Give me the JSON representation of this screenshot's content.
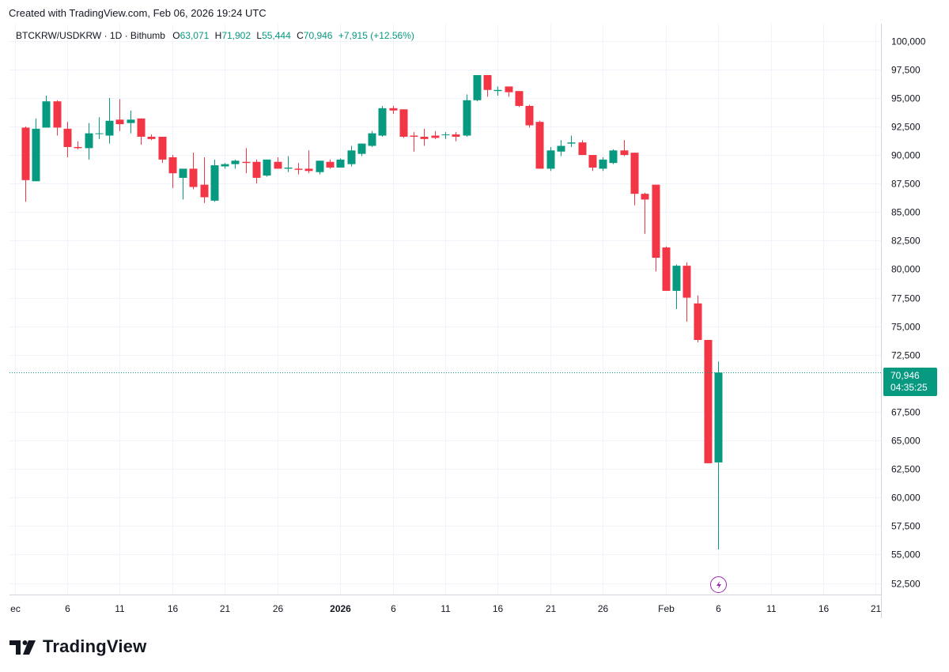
{
  "header": {
    "created_text": "Created with TradingView.com, Feb 06, 2026 19:24 UTC"
  },
  "legend": {
    "symbol": "BTCKRW/USDKRW · 1D · Bithumb",
    "o_label": "O",
    "o_value": "63,071",
    "h_label": "H",
    "h_value": "71,902",
    "l_label": "L",
    "l_value": "55,444",
    "c_label": "C",
    "c_value": "70,946",
    "change": "+7,915 (+12.56%)"
  },
  "price_tag": {
    "price": "70,946",
    "countdown": "04:35:25"
  },
  "brand": {
    "name": "TradingView"
  },
  "icons": {
    "event_marker": "lightning-bolt-icon",
    "logo": "tradingview-logo-icon"
  },
  "colors": {
    "up": "#089981",
    "down": "#F23645",
    "event": "#9C27B0",
    "grid": "#F0F3FA"
  },
  "chart_data": {
    "type": "candlestick",
    "title": "BTCKRW/USDKRW · 1D · Bithumb",
    "xlabel": "",
    "ylabel": "",
    "ylim": [
      51500,
      101500
    ],
    "y_ticks": [
      "100,000",
      "97,500",
      "95,000",
      "92,500",
      "90,000",
      "87,500",
      "85,000",
      "82,500",
      "80,000",
      "77,500",
      "75,000",
      "72,500",
      "67,500",
      "65,000",
      "62,500",
      "60,000",
      "57,500",
      "55,000",
      "52,500"
    ],
    "x_tick_labels": [
      "ec",
      "6",
      "11",
      "16",
      "21",
      "26",
      "2026",
      "6",
      "11",
      "16",
      "21",
      "26",
      "Feb",
      "6",
      "11",
      "16",
      "21"
    ],
    "x_tick_days": [
      0,
      5,
      10,
      15,
      20,
      25,
      31,
      36,
      41,
      46,
      51,
      56,
      62,
      67,
      72,
      77,
      82
    ],
    "x_range_days": [
      -0.5,
      82.5
    ],
    "last_price": 70946,
    "grid": true,
    "candles": [
      {
        "d": 1,
        "o": 92400,
        "h": 92500,
        "l": 85900,
        "c": 87800
      },
      {
        "d": 2,
        "o": 87700,
        "h": 93200,
        "l": 87700,
        "c": 92300
      },
      {
        "d": 3,
        "o": 92400,
        "h": 95200,
        "l": 92400,
        "c": 94700
      },
      {
        "d": 4,
        "o": 94700,
        "h": 94800,
        "l": 91700,
        "c": 92400
      },
      {
        "d": 5,
        "o": 92300,
        "h": 92900,
        "l": 89800,
        "c": 90700
      },
      {
        "d": 6,
        "o": 90700,
        "h": 91200,
        "l": 90500,
        "c": 90600
      },
      {
        "d": 7,
        "o": 90600,
        "h": 92800,
        "l": 89600,
        "c": 91900
      },
      {
        "d": 8,
        "o": 91900,
        "h": 93300,
        "l": 91400,
        "c": 91900
      },
      {
        "d": 9,
        "o": 91700,
        "h": 95000,
        "l": 91000,
        "c": 93000
      },
      {
        "d": 10,
        "o": 93100,
        "h": 94900,
        "l": 92100,
        "c": 92700
      },
      {
        "d": 11,
        "o": 92800,
        "h": 93900,
        "l": 91900,
        "c": 93100
      },
      {
        "d": 12,
        "o": 93200,
        "h": 93200,
        "l": 90900,
        "c": 91600
      },
      {
        "d": 13,
        "o": 91600,
        "h": 91800,
        "l": 91300,
        "c": 91400
      },
      {
        "d": 14,
        "o": 91600,
        "h": 91600,
        "l": 89300,
        "c": 89600
      },
      {
        "d": 15,
        "o": 89800,
        "h": 90000,
        "l": 87100,
        "c": 88400
      },
      {
        "d": 16,
        "o": 88000,
        "h": 88700,
        "l": 86100,
        "c": 88800
      },
      {
        "d": 17,
        "o": 88800,
        "h": 90200,
        "l": 87000,
        "c": 87200
      },
      {
        "d": 18,
        "o": 87400,
        "h": 89800,
        "l": 85800,
        "c": 86300
      },
      {
        "d": 19,
        "o": 86000,
        "h": 89600,
        "l": 85900,
        "c": 89100
      },
      {
        "d": 20,
        "o": 89000,
        "h": 89300,
        "l": 88800,
        "c": 89200
      },
      {
        "d": 21,
        "o": 89200,
        "h": 89600,
        "l": 88800,
        "c": 89500
      },
      {
        "d": 22,
        "o": 89400,
        "h": 90600,
        "l": 88400,
        "c": 89300
      },
      {
        "d": 23,
        "o": 89400,
        "h": 89600,
        "l": 87500,
        "c": 88000
      },
      {
        "d": 24,
        "o": 88200,
        "h": 89600,
        "l": 88100,
        "c": 89600
      },
      {
        "d": 25,
        "o": 89400,
        "h": 89800,
        "l": 88800,
        "c": 88800
      },
      {
        "d": 26,
        "o": 88800,
        "h": 89900,
        "l": 88500,
        "c": 88900
      },
      {
        "d": 27,
        "o": 88800,
        "h": 89300,
        "l": 88300,
        "c": 88700
      },
      {
        "d": 28,
        "o": 88800,
        "h": 90400,
        "l": 88400,
        "c": 88600
      },
      {
        "d": 29,
        "o": 88500,
        "h": 89500,
        "l": 88300,
        "c": 89500
      },
      {
        "d": 30,
        "o": 89400,
        "h": 89600,
        "l": 88800,
        "c": 88900
      },
      {
        "d": 31,
        "o": 88900,
        "h": 89700,
        "l": 88900,
        "c": 89600
      },
      {
        "d": 32,
        "o": 89200,
        "h": 90800,
        "l": 89000,
        "c": 90400
      },
      {
        "d": 33,
        "o": 90100,
        "h": 91000,
        "l": 89900,
        "c": 91000
      },
      {
        "d": 34,
        "o": 90800,
        "h": 92100,
        "l": 90700,
        "c": 91900
      },
      {
        "d": 35,
        "o": 91700,
        "h": 94300,
        "l": 91600,
        "c": 94100
      },
      {
        "d": 36,
        "o": 94100,
        "h": 94300,
        "l": 93600,
        "c": 93900
      },
      {
        "d": 37,
        "o": 94000,
        "h": 94000,
        "l": 91500,
        "c": 91600
      },
      {
        "d": 38,
        "o": 91700,
        "h": 92000,
        "l": 90300,
        "c": 91600
      },
      {
        "d": 39,
        "o": 91600,
        "h": 92300,
        "l": 90800,
        "c": 91400
      },
      {
        "d": 40,
        "o": 91700,
        "h": 92100,
        "l": 91400,
        "c": 91500
      },
      {
        "d": 41,
        "o": 91800,
        "h": 92000,
        "l": 91400,
        "c": 91800
      },
      {
        "d": 42,
        "o": 91800,
        "h": 92000,
        "l": 91200,
        "c": 91600
      },
      {
        "d": 43,
        "o": 91700,
        "h": 95300,
        "l": 91600,
        "c": 94800
      },
      {
        "d": 44,
        "o": 94800,
        "h": 97000,
        "l": 94700,
        "c": 97000
      },
      {
        "d": 45,
        "o": 97000,
        "h": 97000,
        "l": 95100,
        "c": 95700
      },
      {
        "d": 46,
        "o": 95600,
        "h": 96000,
        "l": 95200,
        "c": 95700
      },
      {
        "d": 47,
        "o": 96000,
        "h": 96000,
        "l": 95100,
        "c": 95500
      },
      {
        "d": 48,
        "o": 95600,
        "h": 95600,
        "l": 94200,
        "c": 94300
      },
      {
        "d": 49,
        "o": 94300,
        "h": 94400,
        "l": 92400,
        "c": 92600
      },
      {
        "d": 50,
        "o": 92900,
        "h": 93000,
        "l": 88800,
        "c": 88800
      },
      {
        "d": 51,
        "o": 88800,
        "h": 90700,
        "l": 88600,
        "c": 90400
      },
      {
        "d": 52,
        "o": 90300,
        "h": 91300,
        "l": 89900,
        "c": 90800
      },
      {
        "d": 53,
        "o": 91000,
        "h": 91700,
        "l": 90700,
        "c": 91100
      },
      {
        "d": 54,
        "o": 91100,
        "h": 91300,
        "l": 90000,
        "c": 90000
      },
      {
        "d": 55,
        "o": 90000,
        "h": 90000,
        "l": 88600,
        "c": 88900
      },
      {
        "d": 56,
        "o": 88800,
        "h": 89800,
        "l": 88600,
        "c": 89600
      },
      {
        "d": 57,
        "o": 89300,
        "h": 90500,
        "l": 89200,
        "c": 90400
      },
      {
        "d": 58,
        "o": 90400,
        "h": 91300,
        "l": 89900,
        "c": 90000
      },
      {
        "d": 59,
        "o": 90200,
        "h": 90200,
        "l": 85600,
        "c": 86600
      },
      {
        "d": 60,
        "o": 86600,
        "h": 86700,
        "l": 83100,
        "c": 86100
      },
      {
        "d": 61,
        "o": 87400,
        "h": 87400,
        "l": 79800,
        "c": 81000
      },
      {
        "d": 62,
        "o": 81900,
        "h": 82000,
        "l": 78100,
        "c": 78100
      },
      {
        "d": 63,
        "o": 78100,
        "h": 80400,
        "l": 76500,
        "c": 80300
      },
      {
        "d": 64,
        "o": 80300,
        "h": 80600,
        "l": 75400,
        "c": 77500
      },
      {
        "d": 65,
        "o": 77000,
        "h": 77700,
        "l": 73600,
        "c": 73800
      },
      {
        "d": 66,
        "o": 73800,
        "h": 73800,
        "l": 63000,
        "c": 63000
      },
      {
        "d": 67,
        "o": 63071,
        "h": 71902,
        "l": 55444,
        "c": 70946
      }
    ]
  }
}
